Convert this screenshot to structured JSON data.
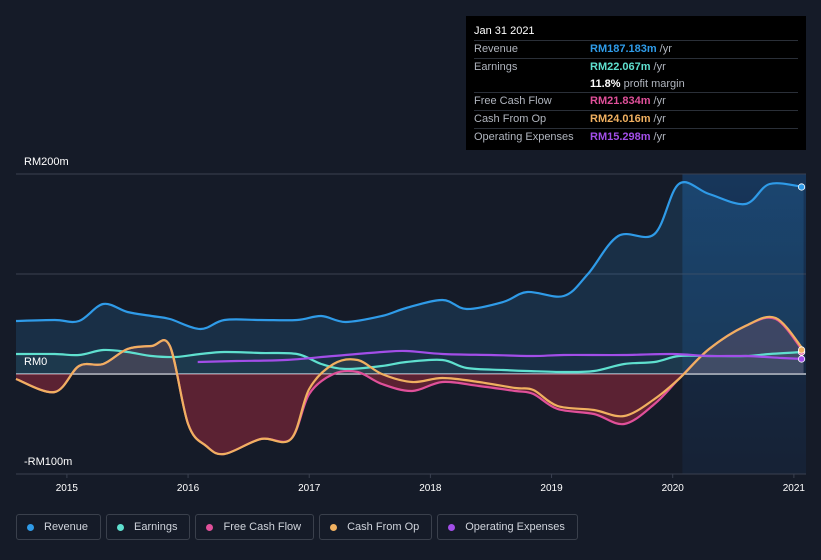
{
  "tooltip": {
    "date": "Jan 31 2021",
    "rows": [
      {
        "label": "Revenue",
        "value": "RM187.183m",
        "unit": "/yr",
        "color": "#2f9be8"
      },
      {
        "label": "Earnings",
        "value": "RM22.067m",
        "unit": "/yr",
        "color": "#5fe0cf"
      },
      {
        "label": "",
        "value": "11.8%",
        "unit": "profit margin",
        "color": "#ffffff"
      },
      {
        "label": "Free Cash Flow",
        "value": "RM21.834m",
        "unit": "/yr",
        "color": "#e0509a"
      },
      {
        "label": "Cash From Op",
        "value": "RM24.016m",
        "unit": "/yr",
        "color": "#f0b060"
      },
      {
        "label": "Operating Expenses",
        "value": "RM15.298m",
        "unit": "/yr",
        "color": "#a24ee8"
      }
    ]
  },
  "legend": [
    {
      "label": "Revenue",
      "color": "#2f9be8"
    },
    {
      "label": "Earnings",
      "color": "#5fe0cf"
    },
    {
      "label": "Free Cash Flow",
      "color": "#e0509a"
    },
    {
      "label": "Cash From Op",
      "color": "#f0b060"
    },
    {
      "label": "Operating Expenses",
      "color": "#a24ee8"
    }
  ],
  "chart_data": {
    "type": "area",
    "ylim": [
      -100,
      200
    ],
    "yticks": [
      {
        "value": 200,
        "label": "RM200m"
      },
      {
        "value": 0,
        "label": "RM0"
      },
      {
        "value": -100,
        "label": "-RM100m"
      }
    ],
    "xlim": [
      2014.58,
      2021.1
    ],
    "xticks": [
      "2015",
      "2016",
      "2017",
      "2018",
      "2019",
      "2020",
      "2021"
    ],
    "forecast_start": 2020.08,
    "series": [
      {
        "name": "Revenue",
        "color": "#2f9be8",
        "x": [
          2014.58,
          2014.9,
          2015.1,
          2015.3,
          2015.5,
          2015.7,
          2015.85,
          2016.1,
          2016.3,
          2016.6,
          2016.9,
          2017.1,
          2017.3,
          2017.6,
          2017.8,
          2018.1,
          2018.3,
          2018.6,
          2018.8,
          2019.1,
          2019.3,
          2019.55,
          2019.85,
          2020.05,
          2020.3,
          2020.6,
          2020.8,
          2021.08
        ],
        "y": [
          53,
          54,
          53,
          70,
          62,
          58,
          55,
          45,
          54,
          54,
          54,
          58,
          52,
          58,
          66,
          74,
          65,
          72,
          82,
          78,
          100,
          138,
          140,
          190,
          180,
          170,
          190,
          187
        ]
      },
      {
        "name": "Earnings",
        "color": "#5fe0cf",
        "x": [
          2014.58,
          2014.9,
          2015.1,
          2015.3,
          2015.5,
          2015.7,
          2015.9,
          2016.1,
          2016.3,
          2016.6,
          2016.9,
          2017.1,
          2017.3,
          2017.6,
          2017.8,
          2018.1,
          2018.3,
          2018.6,
          2018.8,
          2019.1,
          2019.35,
          2019.6,
          2019.85,
          2020.05,
          2020.3,
          2020.6,
          2020.8,
          2021.08
        ],
        "y": [
          20,
          20,
          19,
          24,
          22,
          18,
          17,
          20,
          22,
          21,
          20,
          10,
          5,
          8,
          12,
          14,
          6,
          4,
          3,
          2,
          3,
          10,
          12,
          18,
          18,
          18,
          20,
          22
        ]
      },
      {
        "name": "Free Cash Flow",
        "color": "#e0509a",
        "x": [
          2014.58,
          2014.9,
          2015.1,
          2015.3,
          2015.5,
          2015.7,
          2015.85,
          2016.0,
          2016.15,
          2016.3,
          2016.6,
          2016.85,
          2017.0,
          2017.2,
          2017.4,
          2017.6,
          2017.85,
          2018.1,
          2018.4,
          2018.7,
          2018.85,
          2019.05,
          2019.35,
          2019.6,
          2019.85,
          2020.05,
          2020.3,
          2020.6,
          2020.85,
          2021.08
        ],
        "y": [
          -5,
          -18,
          8,
          10,
          25,
          28,
          28,
          -50,
          -72,
          -80,
          -65,
          -65,
          -20,
          0,
          2,
          -10,
          -17,
          -8,
          -12,
          -17,
          -20,
          -35,
          -40,
          -50,
          -30,
          -5,
          25,
          48,
          55,
          22
        ]
      },
      {
        "name": "Cash From Op",
        "color": "#f0b060",
        "x": [
          2014.58,
          2014.9,
          2015.1,
          2015.3,
          2015.5,
          2015.7,
          2015.85,
          2016.0,
          2016.15,
          2016.3,
          2016.6,
          2016.85,
          2017.0,
          2017.2,
          2017.4,
          2017.6,
          2017.85,
          2018.1,
          2018.4,
          2018.7,
          2018.85,
          2019.05,
          2019.35,
          2019.6,
          2019.85,
          2020.05,
          2020.3,
          2020.6,
          2020.85,
          2021.08
        ],
        "y": [
          -5,
          -18,
          8,
          10,
          25,
          28,
          28,
          -50,
          -72,
          -80,
          -65,
          -65,
          -15,
          10,
          14,
          0,
          -8,
          -4,
          -8,
          -14,
          -16,
          -32,
          -36,
          -42,
          -25,
          -5,
          25,
          48,
          56,
          24
        ]
      },
      {
        "name": "Operating Expenses",
        "color": "#a24ee8",
        "x": [
          2016.08,
          2016.4,
          2016.8,
          2017.2,
          2017.6,
          2017.8,
          2018.1,
          2018.5,
          2018.85,
          2019.1,
          2019.6,
          2020.0,
          2020.3,
          2020.6,
          2020.9,
          2021.08
        ],
        "y": [
          12,
          13,
          14,
          18,
          22,
          23,
          20,
          19,
          18,
          19,
          19,
          20,
          18,
          18,
          16,
          15
        ]
      }
    ]
  }
}
